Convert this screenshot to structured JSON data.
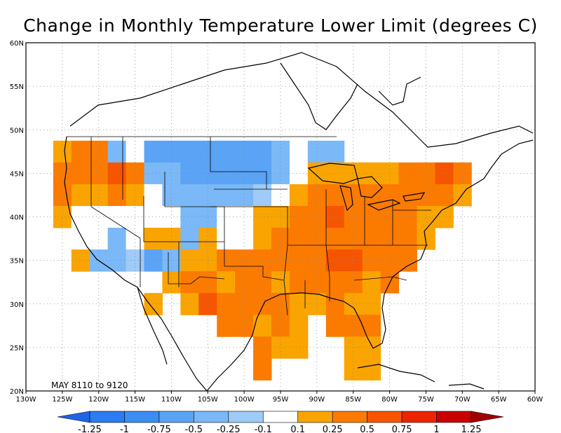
{
  "title": "Change in Monthly Temperature Lower Limit (degrees C)",
  "period_label": "MAY 8110 to 9120",
  "map": {
    "lon_range": [
      -130,
      -60
    ],
    "lat_range": [
      20,
      60
    ],
    "lon_ticks": [
      "130W",
      "125W",
      "120W",
      "115W",
      "110W",
      "105W",
      "100W",
      "95W",
      "90W",
      "85W",
      "80W",
      "75W",
      "70W",
      "65W",
      "60W"
    ],
    "lat_ticks": [
      "20N",
      "25N",
      "30N",
      "35N",
      "40N",
      "45N",
      "50N",
      "55N",
      "60N"
    ],
    "grid_lines": "dotted"
  },
  "colorbar": {
    "labels": [
      "-1.25",
      "-1",
      "-0.75",
      "-0.5",
      "-0.25",
      "-0.1",
      "0.1",
      "0.25",
      "0.5",
      "0.75",
      "1",
      "1.25"
    ],
    "colors": [
      "#1e64e6",
      "#2b7cf0",
      "#3c8df2",
      "#5aa3f5",
      "#7ab8f7",
      "#9ecbf8",
      "#ffffff",
      "#f9a400",
      "#fa7b00",
      "#f65500",
      "#ec2400",
      "#c80000",
      "#a00000"
    ]
  },
  "chart_data": {
    "type": "heatmap",
    "title": "Change in Monthly Temperature Lower Limit (degrees C)",
    "xlabel": "",
    "ylabel": "",
    "xlim": [
      -130,
      -60
    ],
    "ylim": [
      20,
      60
    ],
    "cell_size_deg": 2.5,
    "class_breaks": [
      -1.25,
      -1,
      -0.75,
      -0.5,
      -0.25,
      -0.1,
      0.1,
      0.25,
      0.5,
      0.75,
      1,
      1.25
    ],
    "class_colors": [
      "#1e64e6",
      "#2b7cf0",
      "#3c8df2",
      "#5aa3f5",
      "#7ab8f7",
      "#9ecbf8",
      "#ffffff",
      "#f9a400",
      "#fa7b00",
      "#f65500",
      "#ec2400",
      "#c80000",
      "#a00000"
    ],
    "rows": [
      {
        "lat": 47.5,
        "cells": [
          [
            -125,
            7
          ],
          [
            -122.5,
            8
          ],
          [
            -120,
            8
          ],
          [
            -117.5,
            4
          ],
          [
            -115,
            6
          ],
          [
            -112.5,
            3
          ],
          [
            -110,
            3
          ],
          [
            -107.5,
            3
          ],
          [
            -105,
            3
          ],
          [
            -102.5,
            3
          ],
          [
            -100,
            3
          ],
          [
            -97.5,
            3
          ],
          [
            -95,
            4
          ],
          [
            -92.5,
            6
          ],
          [
            -90,
            4
          ],
          [
            -87.5,
            4
          ]
        ]
      },
      {
        "lat": 45,
        "cells": [
          [
            -125,
            8
          ],
          [
            -122.5,
            8
          ],
          [
            -120,
            8
          ],
          [
            -117.5,
            9
          ],
          [
            -115,
            8
          ],
          [
            -112.5,
            4
          ],
          [
            -110,
            4
          ],
          [
            -107.5,
            3
          ],
          [
            -105,
            3
          ],
          [
            -102.5,
            3
          ],
          [
            -100,
            3
          ],
          [
            -97.5,
            3
          ],
          [
            -95,
            4
          ],
          [
            -92.5,
            6
          ],
          [
            -90,
            7
          ],
          [
            -87.5,
            7
          ],
          [
            -85,
            7
          ],
          [
            -82.5,
            7
          ],
          [
            -80,
            7
          ],
          [
            -77.5,
            8
          ],
          [
            -75,
            8
          ],
          [
            -72.5,
            9
          ],
          [
            -70,
            8
          ]
        ]
      },
      {
        "lat": 42.5,
        "cells": [
          [
            -125,
            8
          ],
          [
            -122.5,
            7
          ],
          [
            -120,
            7
          ],
          [
            -117.5,
            8
          ],
          [
            -115,
            7
          ],
          [
            -112.5,
            6
          ],
          [
            -110,
            4
          ],
          [
            -107.5,
            4
          ],
          [
            -105,
            4
          ],
          [
            -102.5,
            4
          ],
          [
            -100,
            4
          ],
          [
            -97.5,
            5
          ],
          [
            -95,
            6
          ],
          [
            -92.5,
            7
          ],
          [
            -90,
            8
          ],
          [
            -87.5,
            8
          ],
          [
            -85,
            8
          ],
          [
            -82.5,
            8
          ],
          [
            -80,
            8
          ],
          [
            -77.5,
            8
          ],
          [
            -75,
            8
          ],
          [
            -72.5,
            8
          ],
          [
            -70,
            7
          ]
        ]
      },
      {
        "lat": 40,
        "cells": [
          [
            -125,
            7
          ],
          [
            -122.5,
            6
          ],
          [
            -120,
            6
          ],
          [
            -117.5,
            6
          ],
          [
            -115,
            6
          ],
          [
            -112.5,
            6
          ],
          [
            -110,
            6
          ],
          [
            -107.5,
            4
          ],
          [
            -105,
            4
          ],
          [
            -102.5,
            6
          ],
          [
            -100,
            6
          ],
          [
            -97.5,
            7
          ],
          [
            -95,
            7
          ],
          [
            -92.5,
            8
          ],
          [
            -90,
            8
          ],
          [
            -87.5,
            9
          ],
          [
            -85,
            8
          ],
          [
            -82.5,
            8
          ],
          [
            -80,
            8
          ],
          [
            -77.5,
            8
          ],
          [
            -75,
            7
          ],
          [
            -72.5,
            7
          ]
        ]
      },
      {
        "lat": 37.5,
        "cells": [
          [
            -120,
            6
          ],
          [
            -117.5,
            4
          ],
          [
            -115,
            6
          ],
          [
            -112.5,
            7
          ],
          [
            -110,
            7
          ],
          [
            -107.5,
            4
          ],
          [
            -105,
            7
          ],
          [
            -102.5,
            6
          ],
          [
            -100,
            6
          ],
          [
            -97.5,
            7
          ],
          [
            -95,
            8
          ],
          [
            -92.5,
            8
          ],
          [
            -90,
            8
          ],
          [
            -87.5,
            8
          ],
          [
            -85,
            8
          ],
          [
            -82.5,
            8
          ],
          [
            -80,
            8
          ],
          [
            -77.5,
            8
          ],
          [
            -75,
            7
          ]
        ]
      },
      {
        "lat": 35,
        "cells": [
          [
            -122.5,
            7
          ],
          [
            -120,
            4
          ],
          [
            -117.5,
            4
          ],
          [
            -115,
            5
          ],
          [
            -112.5,
            3
          ],
          [
            -110,
            4
          ],
          [
            -107.5,
            7
          ],
          [
            -105,
            7
          ],
          [
            -102.5,
            8
          ],
          [
            -100,
            8
          ],
          [
            -97.5,
            8
          ],
          [
            -95,
            8
          ],
          [
            -92.5,
            8
          ],
          [
            -90,
            8
          ],
          [
            -87.5,
            9
          ],
          [
            -85,
            9
          ],
          [
            -82.5,
            8
          ],
          [
            -80,
            8
          ],
          [
            -77.5,
            8
          ]
        ]
      },
      {
        "lat": 32.5,
        "cells": [
          [
            -110,
            7
          ],
          [
            -107.5,
            8
          ],
          [
            -105,
            8
          ],
          [
            -102.5,
            7
          ],
          [
            -100,
            8
          ],
          [
            -97.5,
            8
          ],
          [
            -95,
            7
          ],
          [
            -92.5,
            8
          ],
          [
            -90,
            8
          ],
          [
            -87.5,
            8
          ],
          [
            -85,
            8
          ],
          [
            -82.5,
            7
          ],
          [
            -80,
            8
          ]
        ]
      },
      {
        "lat": 30,
        "cells": [
          [
            -112.5,
            7
          ],
          [
            -107.5,
            7
          ],
          [
            -105,
            9
          ],
          [
            -102.5,
            8
          ],
          [
            -100,
            8
          ],
          [
            -97.5,
            8
          ],
          [
            -95,
            8
          ],
          [
            -92.5,
            7
          ],
          [
            -90,
            7
          ],
          [
            -87.5,
            8
          ],
          [
            -85,
            7
          ],
          [
            -82.5,
            7
          ]
        ]
      },
      {
        "lat": 27.5,
        "cells": [
          [
            -102.5,
            8
          ],
          [
            -100,
            8
          ],
          [
            -97.5,
            7
          ],
          [
            -95,
            8
          ],
          [
            -92.5,
            7
          ],
          [
            -87.5,
            8
          ],
          [
            -85,
            8
          ],
          [
            -82.5,
            8
          ]
        ]
      },
      {
        "lat": 25,
        "cells": [
          [
            -97.5,
            8
          ],
          [
            -95,
            7
          ],
          [
            -92.5,
            7
          ],
          [
            -85,
            7
          ],
          [
            -82.5,
            7
          ]
        ]
      },
      {
        "lat": 22.5,
        "cells": [
          [
            -97.5,
            8
          ],
          [
            -85,
            7
          ],
          [
            -82.5,
            7
          ]
        ]
      }
    ]
  }
}
